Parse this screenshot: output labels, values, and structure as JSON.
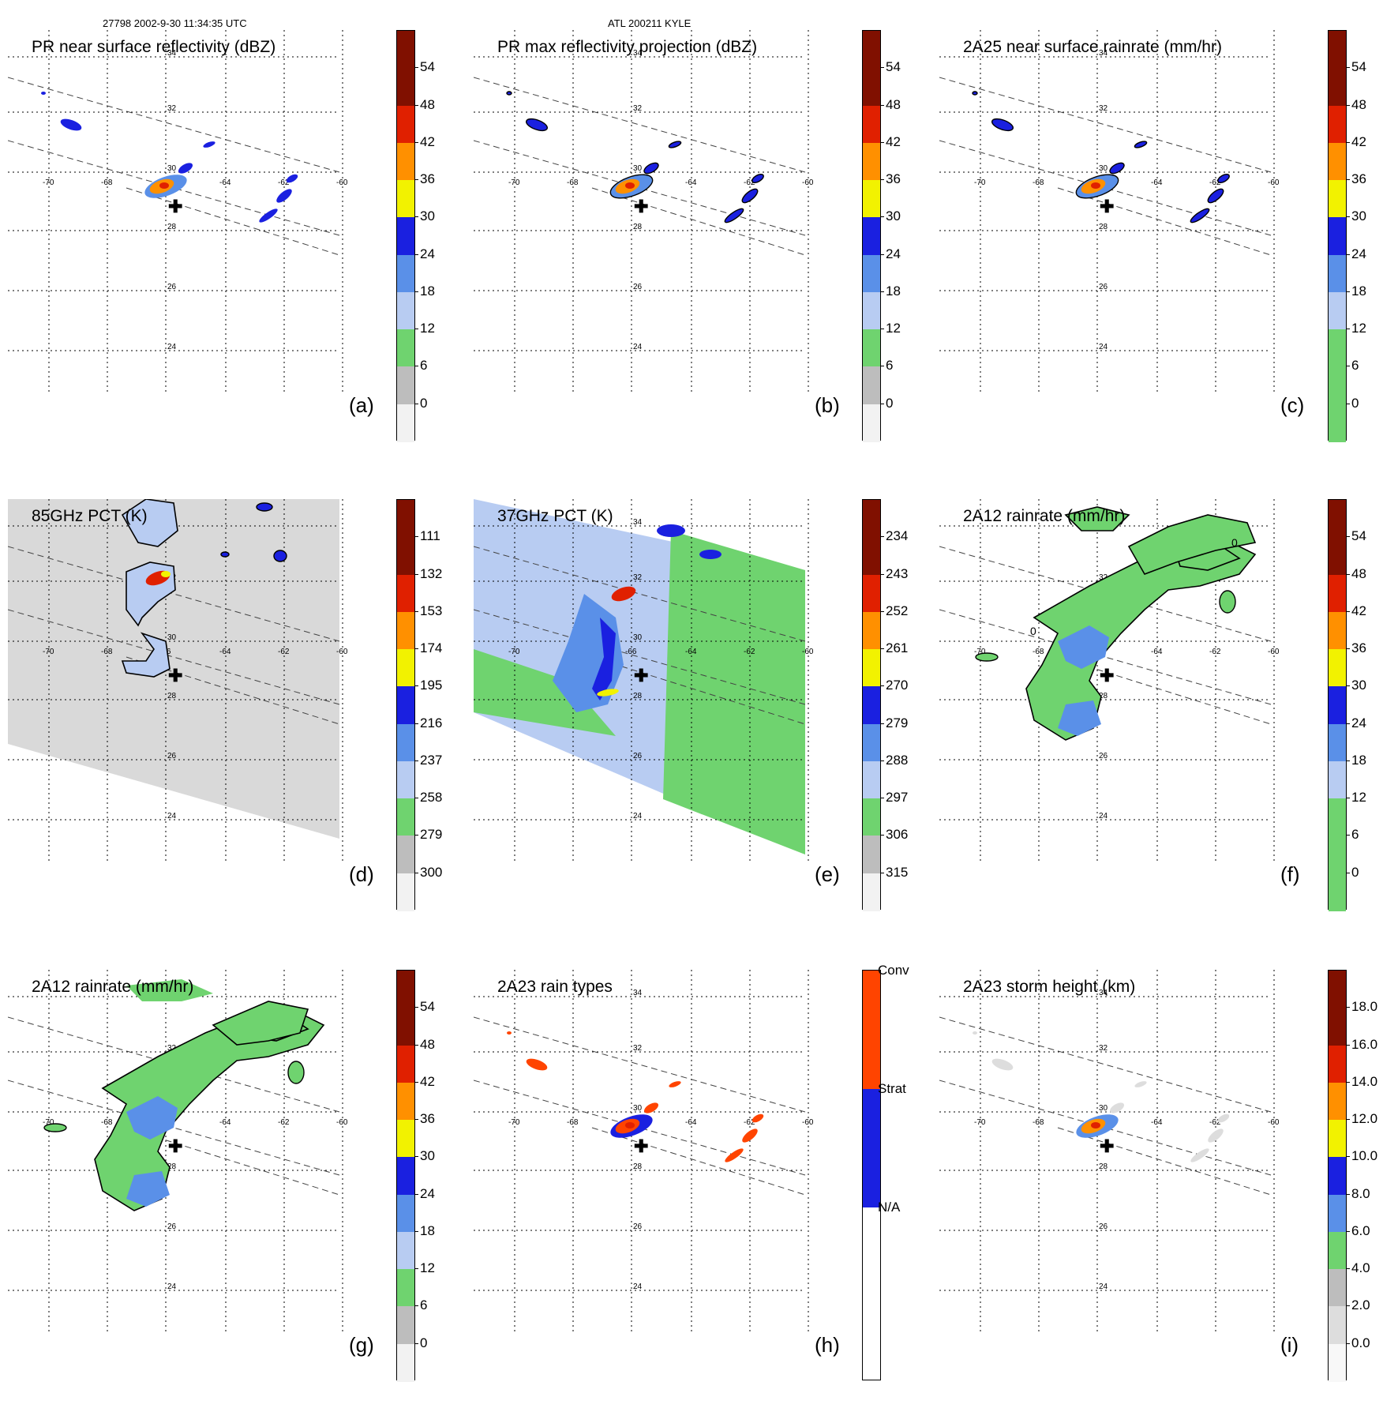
{
  "header": {
    "left": "27798 2002-9-30 11:34:35 UTC",
    "center": "ATL 200211 KYLE"
  },
  "map": {
    "lon_labels": [
      "-70",
      "-68",
      "-66",
      "-64",
      "-62",
      "-60"
    ],
    "lat_labels": [
      "34",
      "32",
      "30",
      "28",
      "26",
      "24"
    ],
    "center_marker": "cross-icon"
  },
  "colors": {
    "green": "#6fd36f",
    "lightblue": "#b8ccf2",
    "midblue": "#5a90e8",
    "blue": "#1a20e0",
    "yellow": "#f2f200",
    "orange": "#ff9000",
    "red": "#e02000",
    "darkred": "#801000",
    "gray": "#bdbdbd",
    "convective": "#ff4400",
    "stratiform": "#1a20e0"
  },
  "chart_data": [
    {
      "id": "a",
      "type": "heatmap",
      "title": "PR near surface reflectivity (dBZ)",
      "panel_label": "(a)",
      "colorbar": {
        "ticks": [
          "54",
          "48",
          "42",
          "36",
          "30",
          "24",
          "18",
          "12",
          "6",
          "0"
        ]
      }
    },
    {
      "id": "b",
      "type": "heatmap",
      "title": "PR max reflectivity projection (dBZ)",
      "panel_label": "(b)",
      "colorbar": {
        "ticks": [
          "54",
          "48",
          "42",
          "36",
          "30",
          "24",
          "18",
          "12",
          "6",
          "0"
        ]
      }
    },
    {
      "id": "c",
      "type": "heatmap",
      "title": "2A25 near surface rainrate (mm/hr)",
      "panel_label": "(c)",
      "colorbar": {
        "ticks": [
          "54",
          "48",
          "42",
          "36",
          "30",
          "24",
          "18",
          "12",
          "6",
          "0"
        ]
      }
    },
    {
      "id": "d",
      "type": "heatmap",
      "title": "85GHz PCT (K)",
      "panel_label": "(d)",
      "colorbar": {
        "ticks": [
          "111",
          "132",
          "153",
          "174",
          "195",
          "216",
          "237",
          "258",
          "279",
          "300"
        ]
      }
    },
    {
      "id": "e",
      "type": "heatmap",
      "title": "37GHz PCT (K)",
      "panel_label": "(e)",
      "colorbar": {
        "ticks": [
          "234",
          "243",
          "252",
          "261",
          "270",
          "279",
          "288",
          "297",
          "306",
          "315"
        ]
      }
    },
    {
      "id": "f",
      "type": "heatmap",
      "title": "2A12 rainrate (mm/hr)",
      "panel_label": "(f)",
      "contour_label": "0",
      "colorbar": {
        "ticks": [
          "54",
          "48",
          "42",
          "36",
          "30",
          "24",
          "18",
          "12",
          "6",
          "0"
        ]
      }
    },
    {
      "id": "g",
      "type": "heatmap",
      "title": "2A12 rainrate (mm/hr)",
      "panel_label": "(g)",
      "colorbar": {
        "ticks": [
          "54",
          "48",
          "42",
          "36",
          "30",
          "24",
          "18",
          "12",
          "6",
          "0"
        ]
      }
    },
    {
      "id": "h",
      "type": "heatmap",
      "title": "2A23 rain types",
      "panel_label": "(h)",
      "colorbar": {
        "categories": [
          "Conv",
          "Strat",
          "N/A"
        ]
      }
    },
    {
      "id": "i",
      "type": "heatmap",
      "title": "2A23 storm height (km)",
      "panel_label": "(i)",
      "colorbar": {
        "ticks": [
          "18.0",
          "16.0",
          "14.0",
          "12.0",
          "10.0",
          "8.0",
          "6.0",
          "4.0",
          "2.0",
          "0.0"
        ]
      }
    }
  ]
}
